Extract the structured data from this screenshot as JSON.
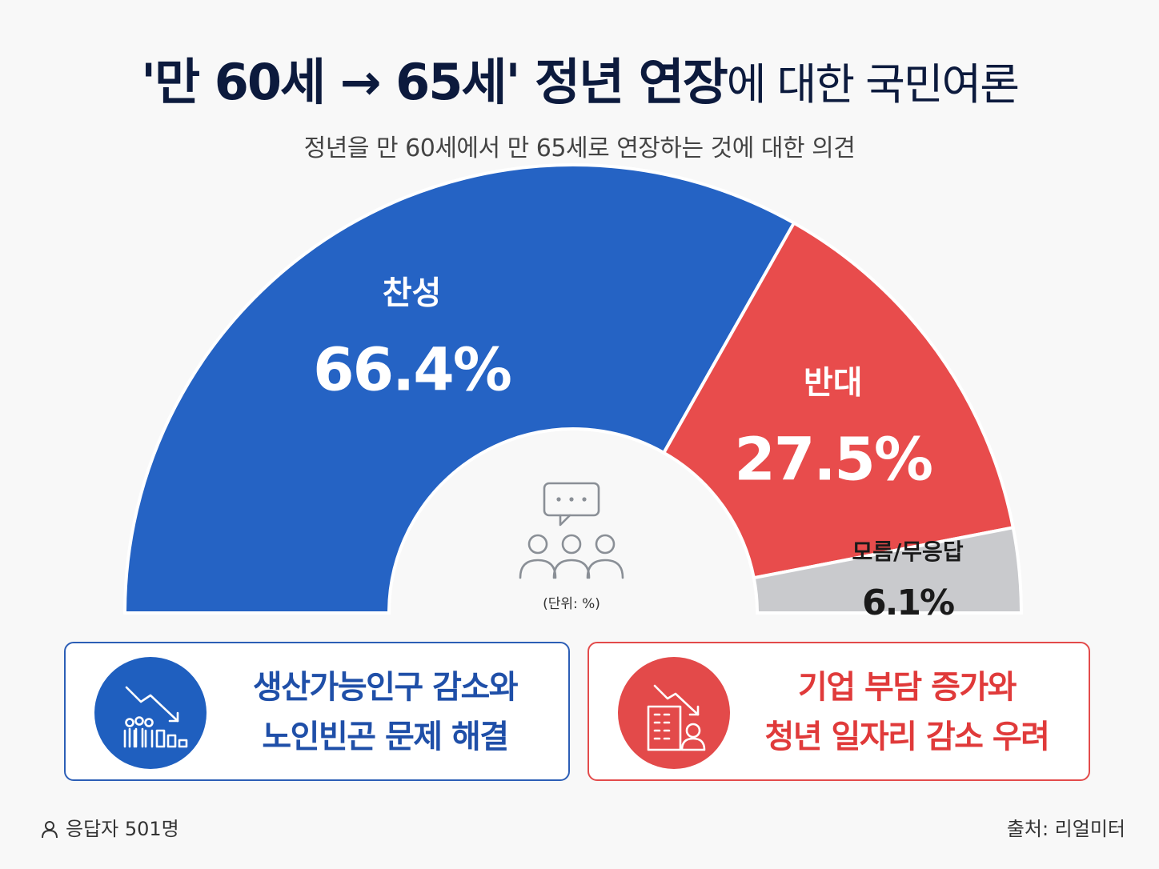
{
  "title": {
    "bold": "'만 60세 → 65세' 정년 연장",
    "light": "에 대한 국민여론"
  },
  "subtitle": "정년을 만 60세에서 만 65세로 연장하는 것에 대한 의견",
  "chart_data": {
    "type": "pie",
    "shape": "half-donut",
    "unit_note": "(단위: %)",
    "slices": [
      {
        "label": "찬성",
        "value": 66.4,
        "display": "66.4%",
        "color": "#2563c4"
      },
      {
        "label": "반대",
        "value": 27.5,
        "display": "27.5%",
        "color": "#e84c4c"
      },
      {
        "label": "모름/무응답",
        "value": 6.1,
        "display": "6.1%",
        "color": "#c9cacd"
      }
    ]
  },
  "cards": {
    "support": {
      "lines": [
        "생산가능인구 감소와",
        "노인빈곤 문제 해결"
      ],
      "icon": "declining-population-chart-icon",
      "color": "#1f5fbf"
    },
    "oppose": {
      "lines": [
        "기업 부담 증가와",
        "청년 일자리 감소 우려"
      ],
      "icon": "building-person-decline-icon",
      "color": "#e34a4a"
    }
  },
  "footer": {
    "respondents": "응답자 501명",
    "source": "출처: 리얼미터"
  }
}
